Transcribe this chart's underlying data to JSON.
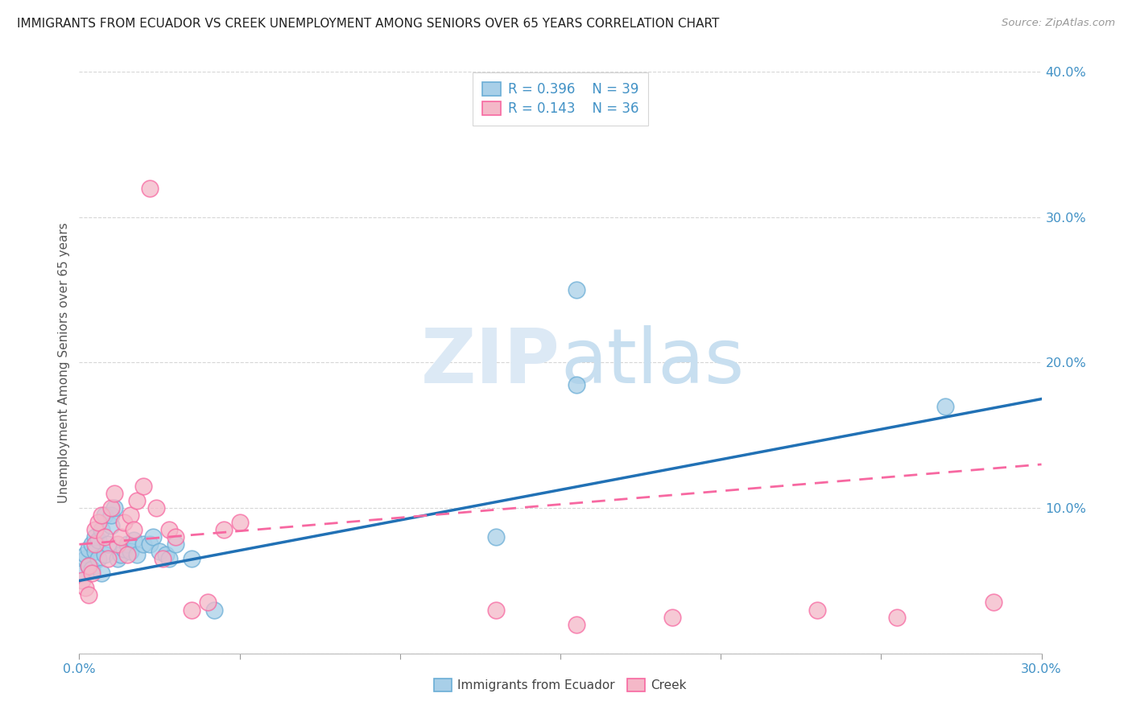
{
  "title": "IMMIGRANTS FROM ECUADOR VS CREEK UNEMPLOYMENT AMONG SENIORS OVER 65 YEARS CORRELATION CHART",
  "source": "Source: ZipAtlas.com",
  "ylabel": "Unemployment Among Seniors over 65 years",
  "xlim": [
    0,
    0.3
  ],
  "ylim": [
    0,
    0.4
  ],
  "xticks": [
    0.0,
    0.05,
    0.1,
    0.15,
    0.2,
    0.25,
    0.3
  ],
  "yticks": [
    0.0,
    0.1,
    0.2,
    0.3,
    0.4
  ],
  "legend_r1": "0.396",
  "legend_n1": "39",
  "legend_r2": "0.143",
  "legend_n2": "36",
  "blue_color": "#a8cfe8",
  "pink_color": "#f4b8c8",
  "blue_edge_color": "#6baed6",
  "pink_edge_color": "#f768a1",
  "blue_line_color": "#2171b5",
  "pink_line_color": "#f768a1",
  "axis_tick_color": "#4292c6",
  "title_color": "#222222",
  "grid_color": "#cccccc",
  "watermark_color": "#dce9f5",
  "ecuador_x": [
    0.001,
    0.002,
    0.002,
    0.003,
    0.003,
    0.004,
    0.004,
    0.005,
    0.005,
    0.006,
    0.006,
    0.007,
    0.007,
    0.008,
    0.008,
    0.009,
    0.01,
    0.01,
    0.011,
    0.012,
    0.013,
    0.014,
    0.015,
    0.016,
    0.017,
    0.018,
    0.02,
    0.022,
    0.023,
    0.025,
    0.027,
    0.028,
    0.03,
    0.035,
    0.042,
    0.13,
    0.155,
    0.27,
    0.155
  ],
  "ecuador_y": [
    0.055,
    0.065,
    0.068,
    0.06,
    0.072,
    0.058,
    0.075,
    0.07,
    0.08,
    0.065,
    0.078,
    0.055,
    0.085,
    0.068,
    0.095,
    0.075,
    0.088,
    0.095,
    0.1,
    0.065,
    0.068,
    0.072,
    0.075,
    0.07,
    0.078,
    0.068,
    0.075,
    0.075,
    0.08,
    0.07,
    0.068,
    0.065,
    0.075,
    0.065,
    0.03,
    0.08,
    0.25,
    0.17,
    0.185
  ],
  "creek_x": [
    0.001,
    0.002,
    0.003,
    0.003,
    0.004,
    0.005,
    0.005,
    0.006,
    0.007,
    0.008,
    0.009,
    0.01,
    0.011,
    0.012,
    0.013,
    0.014,
    0.015,
    0.016,
    0.017,
    0.018,
    0.02,
    0.022,
    0.024,
    0.026,
    0.028,
    0.03,
    0.035,
    0.04,
    0.045,
    0.05,
    0.13,
    0.155,
    0.185,
    0.23,
    0.255,
    0.285
  ],
  "creek_y": [
    0.05,
    0.045,
    0.04,
    0.06,
    0.055,
    0.075,
    0.085,
    0.09,
    0.095,
    0.08,
    0.065,
    0.1,
    0.11,
    0.075,
    0.08,
    0.09,
    0.068,
    0.095,
    0.085,
    0.105,
    0.115,
    0.32,
    0.1,
    0.065,
    0.085,
    0.08,
    0.03,
    0.035,
    0.085,
    0.09,
    0.03,
    0.02,
    0.025,
    0.03,
    0.025,
    0.035
  ],
  "ecuador_trend_x": [
    0.0,
    0.3
  ],
  "ecuador_trend_y": [
    0.05,
    0.175
  ],
  "creek_trend_x": [
    0.0,
    0.3
  ],
  "creek_trend_y": [
    0.075,
    0.13
  ]
}
